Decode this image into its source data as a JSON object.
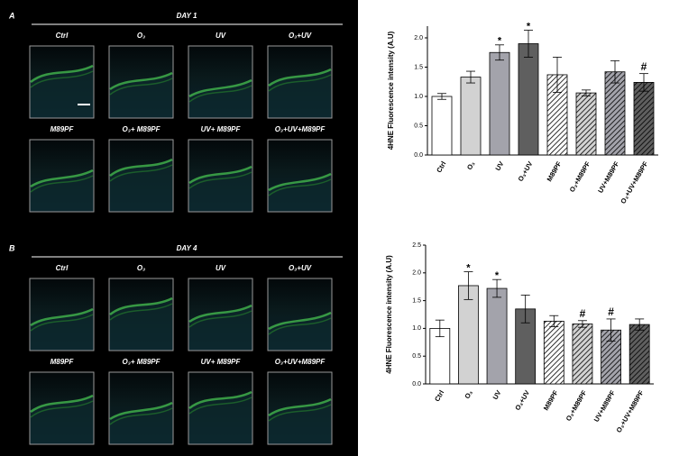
{
  "panels": [
    {
      "letter": "A",
      "day": "DAY 1",
      "labels": [
        "Ctrl",
        "O₃",
        "UV",
        "O₃+UV",
        "M89PF",
        "O₃+ M89PF",
        "UV+ M89PF",
        "O₃+UV+M89PF"
      ]
    },
    {
      "letter": "B",
      "day": "DAY 4",
      "labels": [
        "Ctrl",
        "O₃",
        "UV",
        "O₃+UV",
        "M89PF",
        "O₃+ M89PF",
        "UV+ M89PF",
        "O₃+UV+M89PF"
      ]
    }
  ],
  "chart_data": [
    {
      "type": "bar",
      "ylabel": "4HNE Fluorescence intensity (A.U)",
      "categories": [
        "Ctrl",
        "O₃",
        "UV",
        "O₃+UV",
        "M89PF",
        "O₃+M89PF",
        "UV+M89PF",
        "O₃+UV+M89PF"
      ],
      "values": [
        1.0,
        1.33,
        1.75,
        1.9,
        1.37,
        1.06,
        1.42,
        1.24
      ],
      "errors": [
        0.05,
        0.1,
        0.13,
        0.23,
        0.3,
        0.05,
        0.19,
        0.15
      ],
      "colors": [
        "#ffffff",
        "#d2d2d2",
        "#a3a3ab",
        "#5f5f5f",
        "#ffffff",
        "#d2d2d2",
        "#a3a3ab",
        "#5f5f5f"
      ],
      "hatched": [
        false,
        false,
        false,
        false,
        true,
        true,
        true,
        true
      ],
      "ylim": [
        0,
        2.2
      ],
      "yticks": [
        {
          "value": 0,
          "label": "0.0"
        },
        0.5,
        {
          "value": 1,
          "label": "1.0"
        },
        1.5,
        {
          "value": 2,
          "label": "2.0"
        }
      ],
      "annotations": [
        {
          "index": 2,
          "text": "*"
        },
        {
          "index": 3,
          "text": "*"
        },
        {
          "index": 7,
          "text": "#"
        }
      ]
    },
    {
      "type": "bar",
      "ylabel": "4HNE Fluorescence intensity (A.U)",
      "categories": [
        "Ctrl",
        "O₃",
        "UV",
        "O₃+UV",
        "M89PF",
        "O₃+M89PF",
        "UV+M89PF",
        "O₃+UV+M89PF"
      ],
      "values": [
        1.0,
        1.77,
        1.72,
        1.35,
        1.13,
        1.08,
        0.97,
        1.07
      ],
      "errors": [
        0.15,
        0.25,
        0.16,
        0.25,
        0.1,
        0.06,
        0.2,
        0.1
      ],
      "colors": [
        "#ffffff",
        "#d2d2d2",
        "#a3a3ab",
        "#5f5f5f",
        "#ffffff",
        "#d2d2d2",
        "#a3a3ab",
        "#5f5f5f"
      ],
      "hatched": [
        false,
        false,
        false,
        false,
        true,
        true,
        true,
        true
      ],
      "ylim": [
        0,
        2.5
      ],
      "yticks": [
        {
          "value": 0,
          "label": "0.0"
        },
        0.5,
        {
          "value": 1,
          "label": "1.0"
        },
        1.5,
        {
          "value": 2,
          "label": "2.0"
        },
        2.5
      ],
      "annotations": [
        {
          "index": 1,
          "text": "*"
        },
        {
          "index": 2,
          "text": "*"
        },
        {
          "index": 5,
          "text": "#"
        },
        {
          "index": 6,
          "text": "#"
        }
      ]
    }
  ]
}
